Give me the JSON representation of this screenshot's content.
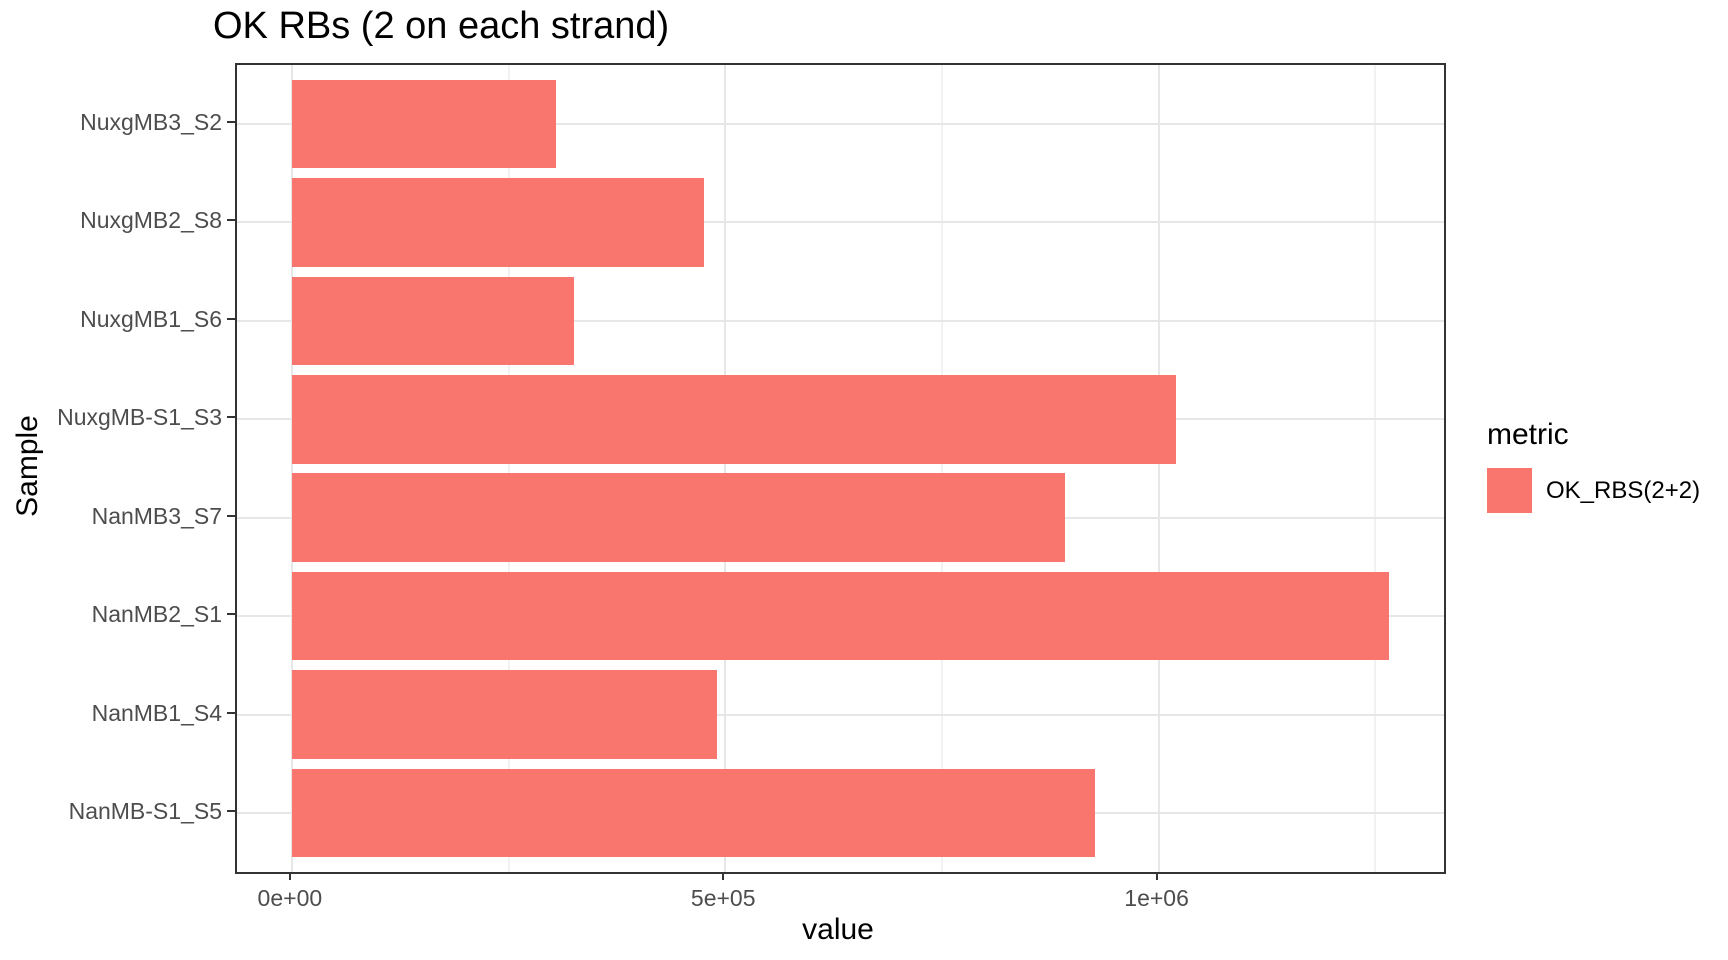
{
  "title": "OK RBs (2 on each strand)",
  "axes": {
    "x_label": "value",
    "y_label": "Sample"
  },
  "legend": {
    "title": "metric",
    "items": [
      {
        "label": "OK_RBS(2+2)",
        "color": "#F8766D"
      }
    ]
  },
  "colors": {
    "bar": "#F8766D",
    "panel_border": "#333333",
    "grid_major": "#e7e7e7",
    "grid_minor": "#f2f2f2",
    "tick_text": "#4d4d4d"
  },
  "chart_data": {
    "type": "bar",
    "orientation": "horizontal",
    "title": "OK RBs (2 on each strand)",
    "xlabel": "value",
    "ylabel": "Sample",
    "series": [
      {
        "name": "OK_RBS(2+2)",
        "color": "#F8766D"
      }
    ],
    "categories_top_to_bottom": [
      "NuxgMB3_S2",
      "NuxgMB2_S8",
      "NuxgMB1_S6",
      "NuxgMB-S1_S3",
      "NanMB3_S7",
      "NanMB2_S1",
      "NanMB1_S4",
      "NanMB-S1_S5"
    ],
    "values": [
      305000,
      475000,
      325000,
      1020000,
      892000,
      1266000,
      490000,
      927000
    ],
    "x_ticks": [
      {
        "value": 0,
        "label": "0e+00"
      },
      {
        "value": 500000,
        "label": "5e+05"
      },
      {
        "value": 1000000,
        "label": "1e+06"
      }
    ],
    "x_minor_ticks": [
      250000,
      750000,
      1250000
    ],
    "xlim_displayed": [
      -63300,
      1329300
    ],
    "grid": "major and minor vertical, major horizontal at band centers",
    "legend_position": "right",
    "bar_width_fraction": 0.9,
    "scale_expansion": 0.05
  }
}
